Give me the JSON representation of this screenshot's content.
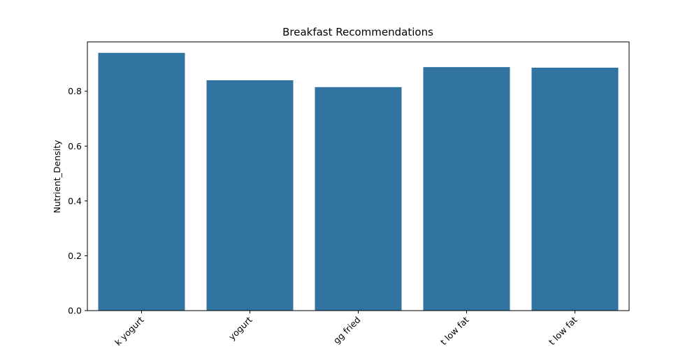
{
  "chart_data": {
    "type": "bar",
    "title": "Breakfast Recommendations",
    "xlabel": "",
    "ylabel": "Nutrient_Density",
    "categories": [
      "k yogurt",
      "yogurt",
      "gg fried",
      "t low fat",
      "t low fat"
    ],
    "values": [
      0.94,
      0.84,
      0.815,
      0.888,
      0.886
    ],
    "ylim": [
      0,
      0.98
    ],
    "yticks": [
      0.0,
      0.2,
      0.4,
      0.6,
      0.8
    ],
    "ytick_labels": [
      "0.0",
      "0.2",
      "0.4",
      "0.6",
      "0.8"
    ],
    "grid": false,
    "legend": "none",
    "bar_color": "#3274a1"
  }
}
